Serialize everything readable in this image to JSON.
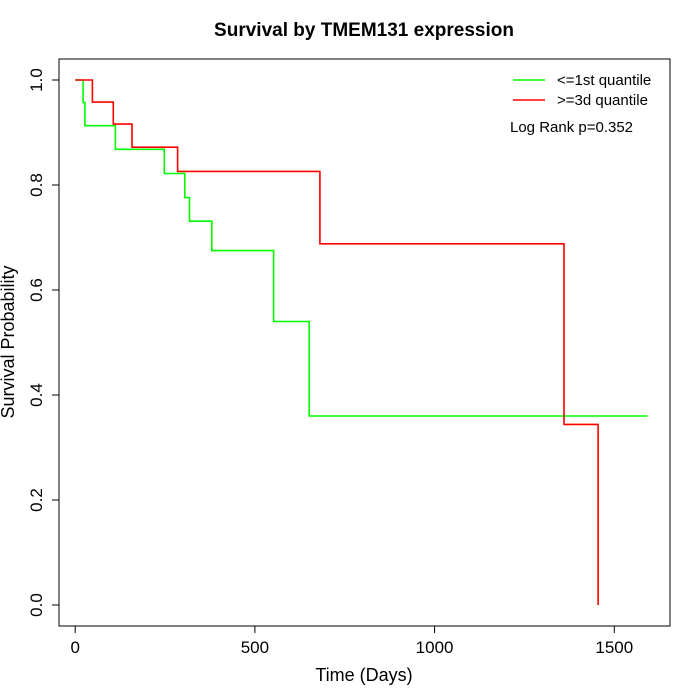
{
  "chart_data": {
    "type": "line",
    "step": true,
    "title": "Survival by TMEM131 expression",
    "xlabel": "Time (Days)",
    "ylabel": "Survival Probability",
    "xlim": [
      -45,
      1655
    ],
    "ylim": [
      -0.04,
      1.04
    ],
    "xticks": [
      0,
      500,
      1000,
      1500
    ],
    "yticks": [
      0.0,
      0.2,
      0.4,
      0.6,
      0.8,
      1.0
    ],
    "xtick_labels": [
      "0",
      "500",
      "1000",
      "1500"
    ],
    "ytick_labels": [
      "0.0",
      "0.2",
      "0.4",
      "0.6",
      "0.8",
      "1.0"
    ],
    "grid": false,
    "legend": "top-right",
    "annotation": "Log Rank p=0.352",
    "series": [
      {
        "name": "<=1st quantile",
        "color": "#00ff00",
        "points": [
          [
            0,
            1.0
          ],
          [
            22,
            1.0
          ],
          [
            22,
            0.957
          ],
          [
            27,
            0.957
          ],
          [
            27,
            0.913
          ],
          [
            112,
            0.913
          ],
          [
            112,
            0.868
          ],
          [
            248,
            0.868
          ],
          [
            248,
            0.822
          ],
          [
            305,
            0.822
          ],
          [
            305,
            0.776
          ],
          [
            318,
            0.776
          ],
          [
            318,
            0.731
          ],
          [
            380,
            0.731
          ],
          [
            380,
            0.675
          ],
          [
            552,
            0.675
          ],
          [
            552,
            0.54
          ],
          [
            651,
            0.54
          ],
          [
            651,
            0.36
          ],
          [
            1592,
            0.36
          ]
        ]
      },
      {
        "name": ">=3d quantile",
        "color": "#ff0000",
        "points": [
          [
            0,
            1.0
          ],
          [
            48,
            1.0
          ],
          [
            48,
            0.958
          ],
          [
            106,
            0.958
          ],
          [
            106,
            0.916
          ],
          [
            158,
            0.916
          ],
          [
            158,
            0.872
          ],
          [
            285,
            0.872
          ],
          [
            285,
            0.826
          ],
          [
            681,
            0.826
          ],
          [
            681,
            0.688
          ],
          [
            1360,
            0.688
          ],
          [
            1360,
            0.344
          ],
          [
            1455,
            0.344
          ],
          [
            1455,
            0.0
          ]
        ]
      }
    ]
  }
}
